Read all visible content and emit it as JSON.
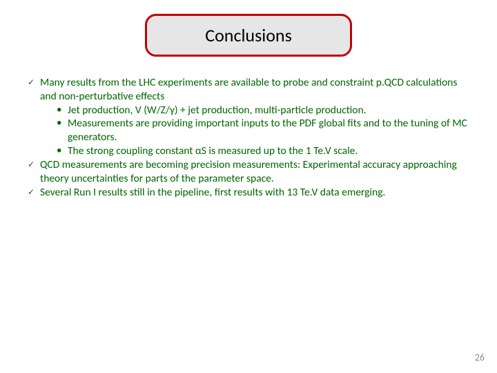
{
  "colors": {
    "title_border": "#c00000",
    "title_bg": "#e6e6e6",
    "title_text": "#000000",
    "body_text": "#006600",
    "check_mark": "#006600",
    "bullet": "#006600",
    "page_num": "#8b8b8b",
    "background": "#ffffff"
  },
  "typography": {
    "title_fontsize": 26,
    "body_fontsize": 15.5,
    "check_fontsize": 12,
    "pagenum_fontsize": 14,
    "line_height": 1.28
  },
  "layout": {
    "title_box_width": 300,
    "title_box_border_radius": 16,
    "title_box_border_width": 3,
    "sub_indent": 24
  },
  "title": "Conclusions",
  "items": [
    {
      "lead": "Many results from the LHC experiments are available to probe and constraint p.QCD calculations and non-perturbative effects",
      "sub": [
        "Jet production, V (W/Z/γ) + jet production, multi-particle production.",
        "Measurements are providing important inputs to the PDF global fits and to the tuning of MC generators.",
        "The strong coupling constant αS is measured up to the 1 Te.V scale."
      ]
    },
    {
      "lead": "QCD measurements are becoming precision measurements: Experimental accuracy approaching theory uncertainties for parts of the parameter space.",
      "sub": []
    },
    {
      "lead": "Several Run I results still in the pipeline, first results with 13 Te.V data emerging.",
      "sub": []
    }
  ],
  "page_number": "26",
  "glyphs": {
    "check": "✓",
    "bullet": "•"
  }
}
